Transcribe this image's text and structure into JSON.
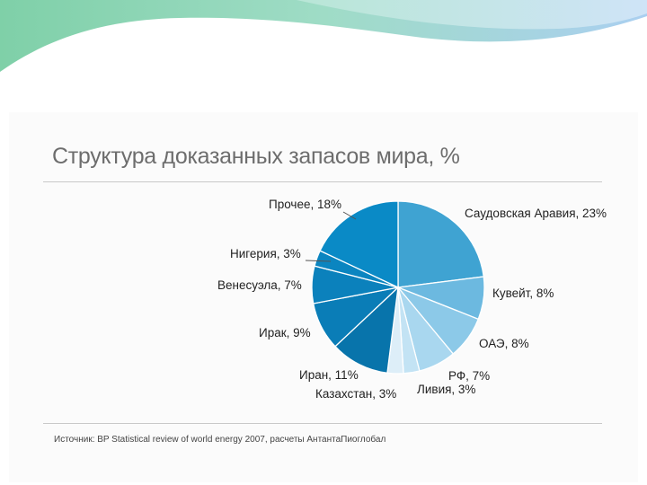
{
  "chart_data": {
    "type": "pie",
    "title": "Структура доказанных запасов мира, %",
    "source": "Источник: BP Statistical review of world energy 2007, расчеты АнтантаПиоглобал",
    "slices": [
      {
        "name": "Саудовская Аравия",
        "value": 23,
        "label": "Саудовская Аравия, 23%",
        "color": "#3fa3d2"
      },
      {
        "name": "Кувейт",
        "value": 8,
        "label": "Кувейт, 8%",
        "color": "#6cb9e0"
      },
      {
        "name": "ОАЭ",
        "value": 8,
        "label": "ОАЭ, 8%",
        "color": "#8cc9e8"
      },
      {
        "name": "РФ",
        "value": 7,
        "label": "РФ, 7%",
        "color": "#a9d7ef"
      },
      {
        "name": "Ливия",
        "value": 3,
        "label": "Ливия, 3%",
        "color": "#c3e3f4"
      },
      {
        "name": "Казахстан",
        "value": 3,
        "label": "Казахстан, 3%",
        "color": "#ddeef8"
      },
      {
        "name": "Иран",
        "value": 11,
        "label": "Иран, 11%",
        "color": "#0874ab"
      },
      {
        "name": "Ирак",
        "value": 9,
        "label": "Ирак, 9%",
        "color": "#0a7db7"
      },
      {
        "name": "Венесуэла",
        "value": 7,
        "label": "Венесуэла, 7%",
        "color": "#0b81bc"
      },
      {
        "name": "Нигерия",
        "value": 3,
        "label": "Нигерия, 3%",
        "color": "#0b85c0"
      },
      {
        "name": "Прочее",
        "value": 18,
        "label": "Прочее, 18%",
        "color": "#0a8ac6"
      }
    ]
  }
}
